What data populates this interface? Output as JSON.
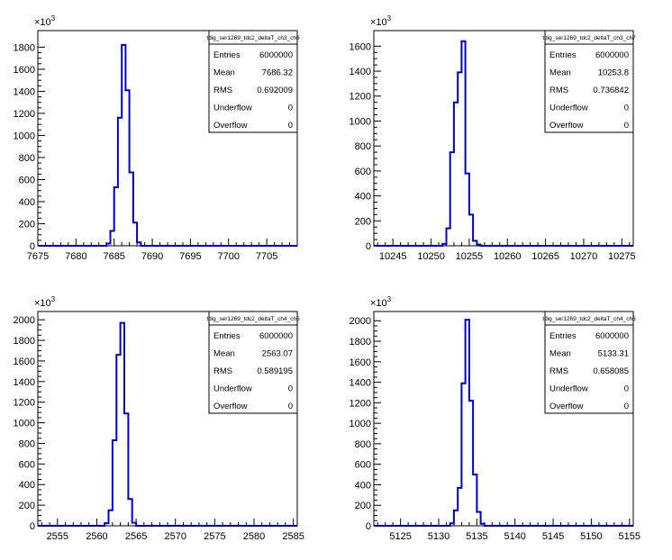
{
  "exponent_label": "×10",
  "exponent_power": "3",
  "stats_labels": [
    "Entries",
    "Mean",
    "RMS",
    "Underflow",
    "Overflow"
  ],
  "chart_data": [
    {
      "type": "bar",
      "title": "tdig_ser1269_tdc2_deltaT_ch3_ch6",
      "stats": {
        "Entries": "6000000",
        "Mean": "7686.32",
        "RMS": "0.692009",
        "Underflow": "0",
        "Overflow": "0"
      },
      "xlim": [
        7675,
        7709
      ],
      "ylim": [
        0,
        1950
      ],
      "y_scale_factor": 1000,
      "x_ticks": [
        7675,
        7680,
        7685,
        7690,
        7695,
        7700,
        7705
      ],
      "y_ticks": [
        0,
        200,
        400,
        600,
        800,
        1000,
        1200,
        1400,
        1600,
        1800
      ],
      "bin_width": 0.5,
      "bins": [
        {
          "x": 7684.0,
          "y": 20
        },
        {
          "x": 7684.5,
          "y": 135
        },
        {
          "x": 7685.0,
          "y": 530
        },
        {
          "x": 7685.5,
          "y": 1160
        },
        {
          "x": 7686.0,
          "y": 1820
        },
        {
          "x": 7686.5,
          "y": 1410
        },
        {
          "x": 7687.0,
          "y": 665
        },
        {
          "x": 7687.5,
          "y": 210
        },
        {
          "x": 7688.0,
          "y": 30
        }
      ]
    },
    {
      "type": "bar",
      "title": "tdig_ser1269_tdc2_deltaT_ch3_ch7",
      "stats": {
        "Entries": "6000000",
        "Mean": "10253.8",
        "RMS": "0.736842",
        "Underflow": "0",
        "Overflow": "0"
      },
      "xlim": [
        10242.5,
        10276.5
      ],
      "ylim": [
        0,
        1725
      ],
      "y_scale_factor": 1000,
      "x_ticks": [
        10245,
        10250,
        10255,
        10260,
        10265,
        10270,
        10275
      ],
      "y_ticks": [
        0,
        200,
        400,
        600,
        800,
        1000,
        1200,
        1400,
        1600
      ],
      "bin_width": 0.5,
      "bins": [
        {
          "x": 10251.5,
          "y": 15
        },
        {
          "x": 10252.0,
          "y": 140
        },
        {
          "x": 10252.5,
          "y": 750
        },
        {
          "x": 10253.0,
          "y": 1150
        },
        {
          "x": 10253.5,
          "y": 1390
        },
        {
          "x": 10254.0,
          "y": 1640
        },
        {
          "x": 10254.5,
          "y": 580
        },
        {
          "x": 10255.0,
          "y": 250
        },
        {
          "x": 10255.5,
          "y": 40
        },
        {
          "x": 10256.0,
          "y": 10
        }
      ]
    },
    {
      "type": "bar",
      "title": "tdig_ser1269_tdc2_deltaT_ch4_ch5",
      "stats": {
        "Entries": "6000000",
        "Mean": "2563.07",
        "RMS": "0.589195",
        "Underflow": "0",
        "Overflow": "0"
      },
      "xlim": [
        2552.5,
        2585.5
      ],
      "ylim": [
        0,
        2080
      ],
      "y_scale_factor": 1000,
      "x_ticks": [
        2555,
        2560,
        2565,
        2570,
        2575,
        2580,
        2585
      ],
      "y_ticks": [
        0,
        200,
        400,
        600,
        800,
        1000,
        1200,
        1400,
        1600,
        1800,
        2000
      ],
      "bin_width": 0.5,
      "bins": [
        {
          "x": 2561.0,
          "y": 25
        },
        {
          "x": 2561.5,
          "y": 150
        },
        {
          "x": 2562.0,
          "y": 830
        },
        {
          "x": 2562.5,
          "y": 1660
        },
        {
          "x": 2563.0,
          "y": 1970
        },
        {
          "x": 2563.5,
          "y": 1090
        },
        {
          "x": 2564.0,
          "y": 260
        },
        {
          "x": 2564.5,
          "y": 30
        }
      ]
    },
    {
      "type": "bar",
      "title": "tdig_ser1269_tdc2_deltaT_ch4_ch6",
      "stats": {
        "Entries": "6000000",
        "Mean": "5133.31",
        "RMS": "0.658085",
        "Underflow": "0",
        "Overflow": "0"
      },
      "xlim": [
        5121.5,
        5155.5
      ],
      "ylim": [
        0,
        2090
      ],
      "y_scale_factor": 1000,
      "x_ticks": [
        5125,
        5130,
        5135,
        5140,
        5145,
        5150,
        5155
      ],
      "y_ticks": [
        0,
        200,
        400,
        600,
        800,
        1000,
        1200,
        1400,
        1600,
        1800,
        2000
      ],
      "bin_width": 0.5,
      "bins": [
        {
          "x": 5131.5,
          "y": 25
        },
        {
          "x": 5132.0,
          "y": 150
        },
        {
          "x": 5132.5,
          "y": 370
        },
        {
          "x": 5133.0,
          "y": 1390
        },
        {
          "x": 5133.5,
          "y": 2010
        },
        {
          "x": 5134.0,
          "y": 1220
        },
        {
          "x": 5134.5,
          "y": 500
        },
        {
          "x": 5135.0,
          "y": 135
        },
        {
          "x": 5135.5,
          "y": 20
        }
      ]
    }
  ]
}
